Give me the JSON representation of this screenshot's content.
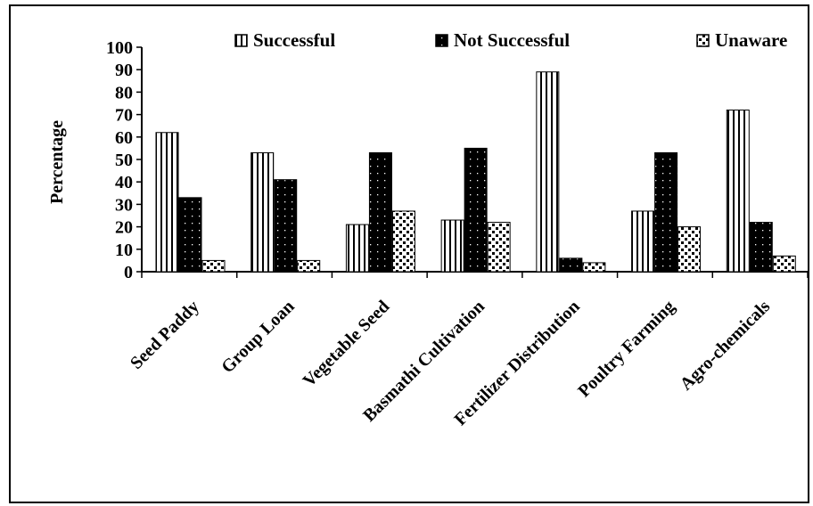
{
  "chart_data": {
    "type": "bar",
    "title": "",
    "xlabel": "",
    "ylabel": "Percentage",
    "ylim": [
      0,
      100
    ],
    "yticks": [
      0,
      10,
      20,
      30,
      40,
      50,
      60,
      70,
      80,
      90,
      100
    ],
    "grid": false,
    "legend_position": "top",
    "categories": [
      "Seed Paddy",
      "Group Loan",
      "Vegetable Seed",
      "Basmathi Cultivation",
      "Fertilizer Distribution",
      "Poultry Farming",
      "Agro-chemicals"
    ],
    "series": [
      {
        "name": "Successful",
        "pattern": "vertical-stripes",
        "values": [
          62,
          53,
          21,
          23,
          89,
          27,
          72
        ]
      },
      {
        "name": "Not Successful",
        "pattern": "black-dots",
        "values": [
          33,
          41,
          53,
          55,
          6,
          53,
          22
        ]
      },
      {
        "name": "Unaware",
        "pattern": "checker-dots",
        "values": [
          5,
          5,
          27,
          22,
          4,
          20,
          7
        ]
      }
    ]
  }
}
